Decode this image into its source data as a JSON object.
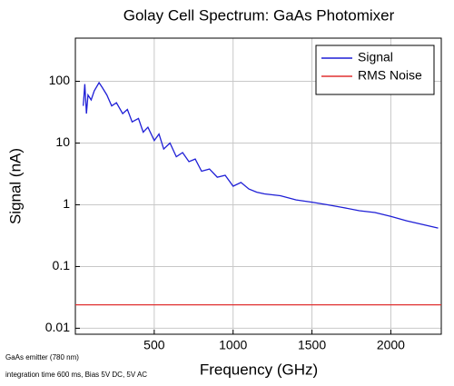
{
  "chart_data": {
    "type": "line",
    "title": "Golay Cell Spectrum: GaAs Photomixer",
    "x_label": "Frequency (GHz)",
    "y_label": "Signal (nA)",
    "annotations": [
      "GaAs emitter (780 nm)",
      "integration time 600 ms, Bias 5V DC, 5V AC"
    ],
    "xlim": [
      0,
      2320
    ],
    "xticks": [
      500,
      1000,
      1500,
      2000
    ],
    "ylim": [
      0.008,
      500
    ],
    "yticks": [
      0.01,
      0.1,
      1,
      10,
      100
    ],
    "y_scale": "log",
    "grid": true,
    "legend": "upper right",
    "series": [
      {
        "name": "Signal",
        "color": "#1f1fd6",
        "x": [
          50,
          60,
          70,
          80,
          100,
          120,
          150,
          170,
          200,
          230,
          260,
          300,
          330,
          360,
          400,
          430,
          460,
          500,
          530,
          560,
          600,
          640,
          680,
          720,
          760,
          800,
          850,
          900,
          950,
          1000,
          1050,
          1100,
          1150,
          1200,
          1300,
          1400,
          1500,
          1600,
          1700,
          1800,
          1900,
          2000,
          2100,
          2200,
          2300
        ],
        "values": [
          40,
          90,
          30,
          60,
          50,
          70,
          95,
          80,
          60,
          40,
          45,
          30,
          35,
          22,
          25,
          15,
          18,
          11,
          14,
          8,
          10,
          6,
          7,
          5,
          5.5,
          3.5,
          3.8,
          2.8,
          3,
          2,
          2.3,
          1.8,
          1.6,
          1.5,
          1.4,
          1.2,
          1.1,
          1,
          0.9,
          0.8,
          0.75,
          0.65,
          0.55,
          0.48,
          0.42
        ]
      },
      {
        "name": "RMS Noise",
        "color": "#e03030",
        "x": [
          0,
          2320
        ],
        "values": [
          0.024,
          0.024
        ]
      }
    ]
  }
}
